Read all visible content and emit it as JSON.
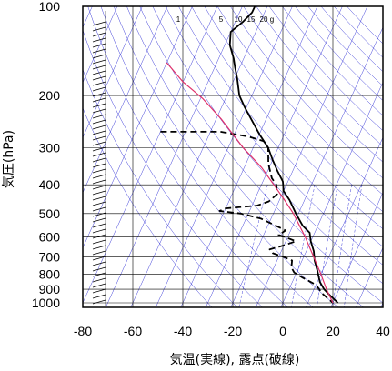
{
  "chart_data": {
    "type": "line",
    "subtype": "skew-t log-p sounding",
    "xlabel": "気温(実線), 露点(破線)",
    "ylabel": "気圧(hPa)",
    "x_ticks": [
      -80,
      -60,
      -40,
      -20,
      0,
      20,
      40
    ],
    "y_ticks": [
      100,
      200,
      300,
      400,
      500,
      600,
      700,
      800,
      900,
      1000
    ],
    "xlim": [
      -80,
      40
    ],
    "ylim": [
      1050,
      100
    ],
    "y_scale": "log",
    "grid": true,
    "mixing_ratio_labels": [
      "1",
      "5",
      "10",
      "15",
      "20",
      "g"
    ],
    "colors": {
      "temperature": "#000000",
      "dewpoint": "#000000",
      "parcel": "#e0306a",
      "grid_lines": "#000000",
      "guide_lines": "#3f3fd9"
    },
    "series": [
      {
        "style": "solid",
        "points": [
          {
            "p": 100,
            "t": -65
          },
          {
            "p": 105,
            "t": -65
          },
          {
            "p": 113,
            "t": -67
          },
          {
            "p": 122,
            "t": -70
          },
          {
            "p": 135,
            "t": -68
          },
          {
            "p": 150,
            "t": -64
          },
          {
            "p": 160,
            "t": -62
          },
          {
            "p": 175,
            "t": -59
          },
          {
            "p": 200,
            "t": -55
          },
          {
            "p": 220,
            "t": -50.5
          },
          {
            "p": 245,
            "t": -45
          },
          {
            "p": 270,
            "t": -40
          },
          {
            "p": 300,
            "t": -34
          },
          {
            "p": 330,
            "t": -30
          },
          {
            "p": 360,
            "t": -26
          },
          {
            "p": 390,
            "t": -22
          },
          {
            "p": 420,
            "t": -20
          },
          {
            "p": 450,
            "t": -16
          },
          {
            "p": 500,
            "t": -11
          },
          {
            "p": 550,
            "t": -6
          },
          {
            "p": 580,
            "t": -2
          },
          {
            "p": 620,
            "t": 0
          },
          {
            "p": 670,
            "t": 3
          },
          {
            "p": 720,
            "t": 5
          },
          {
            "p": 780,
            "t": 8
          },
          {
            "p": 850,
            "t": 11
          },
          {
            "p": 900,
            "t": 14
          },
          {
            "p": 950,
            "t": 18
          },
          {
            "p": 1000,
            "t": 22
          }
        ]
      },
      {
        "style": "dashed",
        "points": [
          {
            "p": 265,
            "t": -80
          },
          {
            "p": 265,
            "t": -56
          },
          {
            "p": 275,
            "t": -44
          },
          {
            "p": 285,
            "t": -37
          },
          {
            "p": 300,
            "t": -34
          },
          {
            "p": 340,
            "t": -31
          },
          {
            "p": 380,
            "t": -27
          },
          {
            "p": 400,
            "t": -24
          },
          {
            "p": 430,
            "t": -22
          },
          {
            "p": 455,
            "t": -24
          },
          {
            "p": 470,
            "t": -28
          },
          {
            "p": 480,
            "t": -40
          },
          {
            "p": 490,
            "t": -42
          },
          {
            "p": 500,
            "t": -33
          },
          {
            "p": 520,
            "t": -24
          },
          {
            "p": 570,
            "t": -12
          },
          {
            "p": 590,
            "t": -14
          },
          {
            "p": 600,
            "t": -11
          },
          {
            "p": 620,
            "t": -6
          },
          {
            "p": 640,
            "t": -10
          },
          {
            "p": 660,
            "t": -15
          },
          {
            "p": 680,
            "t": -13
          },
          {
            "p": 700,
            "t": -8
          },
          {
            "p": 720,
            "t": -4
          },
          {
            "p": 760,
            "t": -3
          },
          {
            "p": 790,
            "t": -1
          },
          {
            "p": 820,
            "t": 3
          },
          {
            "p": 870,
            "t": 10
          },
          {
            "p": 930,
            "t": 14
          },
          {
            "p": 1000,
            "t": 20
          }
        ]
      },
      {
        "style": "solid",
        "points": [
          {
            "p": 155,
            "t": -90
          },
          {
            "p": 180,
            "t": -80
          },
          {
            "p": 205,
            "t": -69
          },
          {
            "p": 240,
            "t": -58
          },
          {
            "p": 300,
            "t": -44
          },
          {
            "p": 350,
            "t": -33
          },
          {
            "p": 400,
            "t": -25
          },
          {
            "p": 450,
            "t": -18
          },
          {
            "p": 500,
            "t": -12
          },
          {
            "p": 600,
            "t": -3
          },
          {
            "p": 700,
            "t": 4
          },
          {
            "p": 800,
            "t": 10
          },
          {
            "p": 900,
            "t": 15
          },
          {
            "p": 1000,
            "t": 20
          }
        ]
      }
    ]
  }
}
